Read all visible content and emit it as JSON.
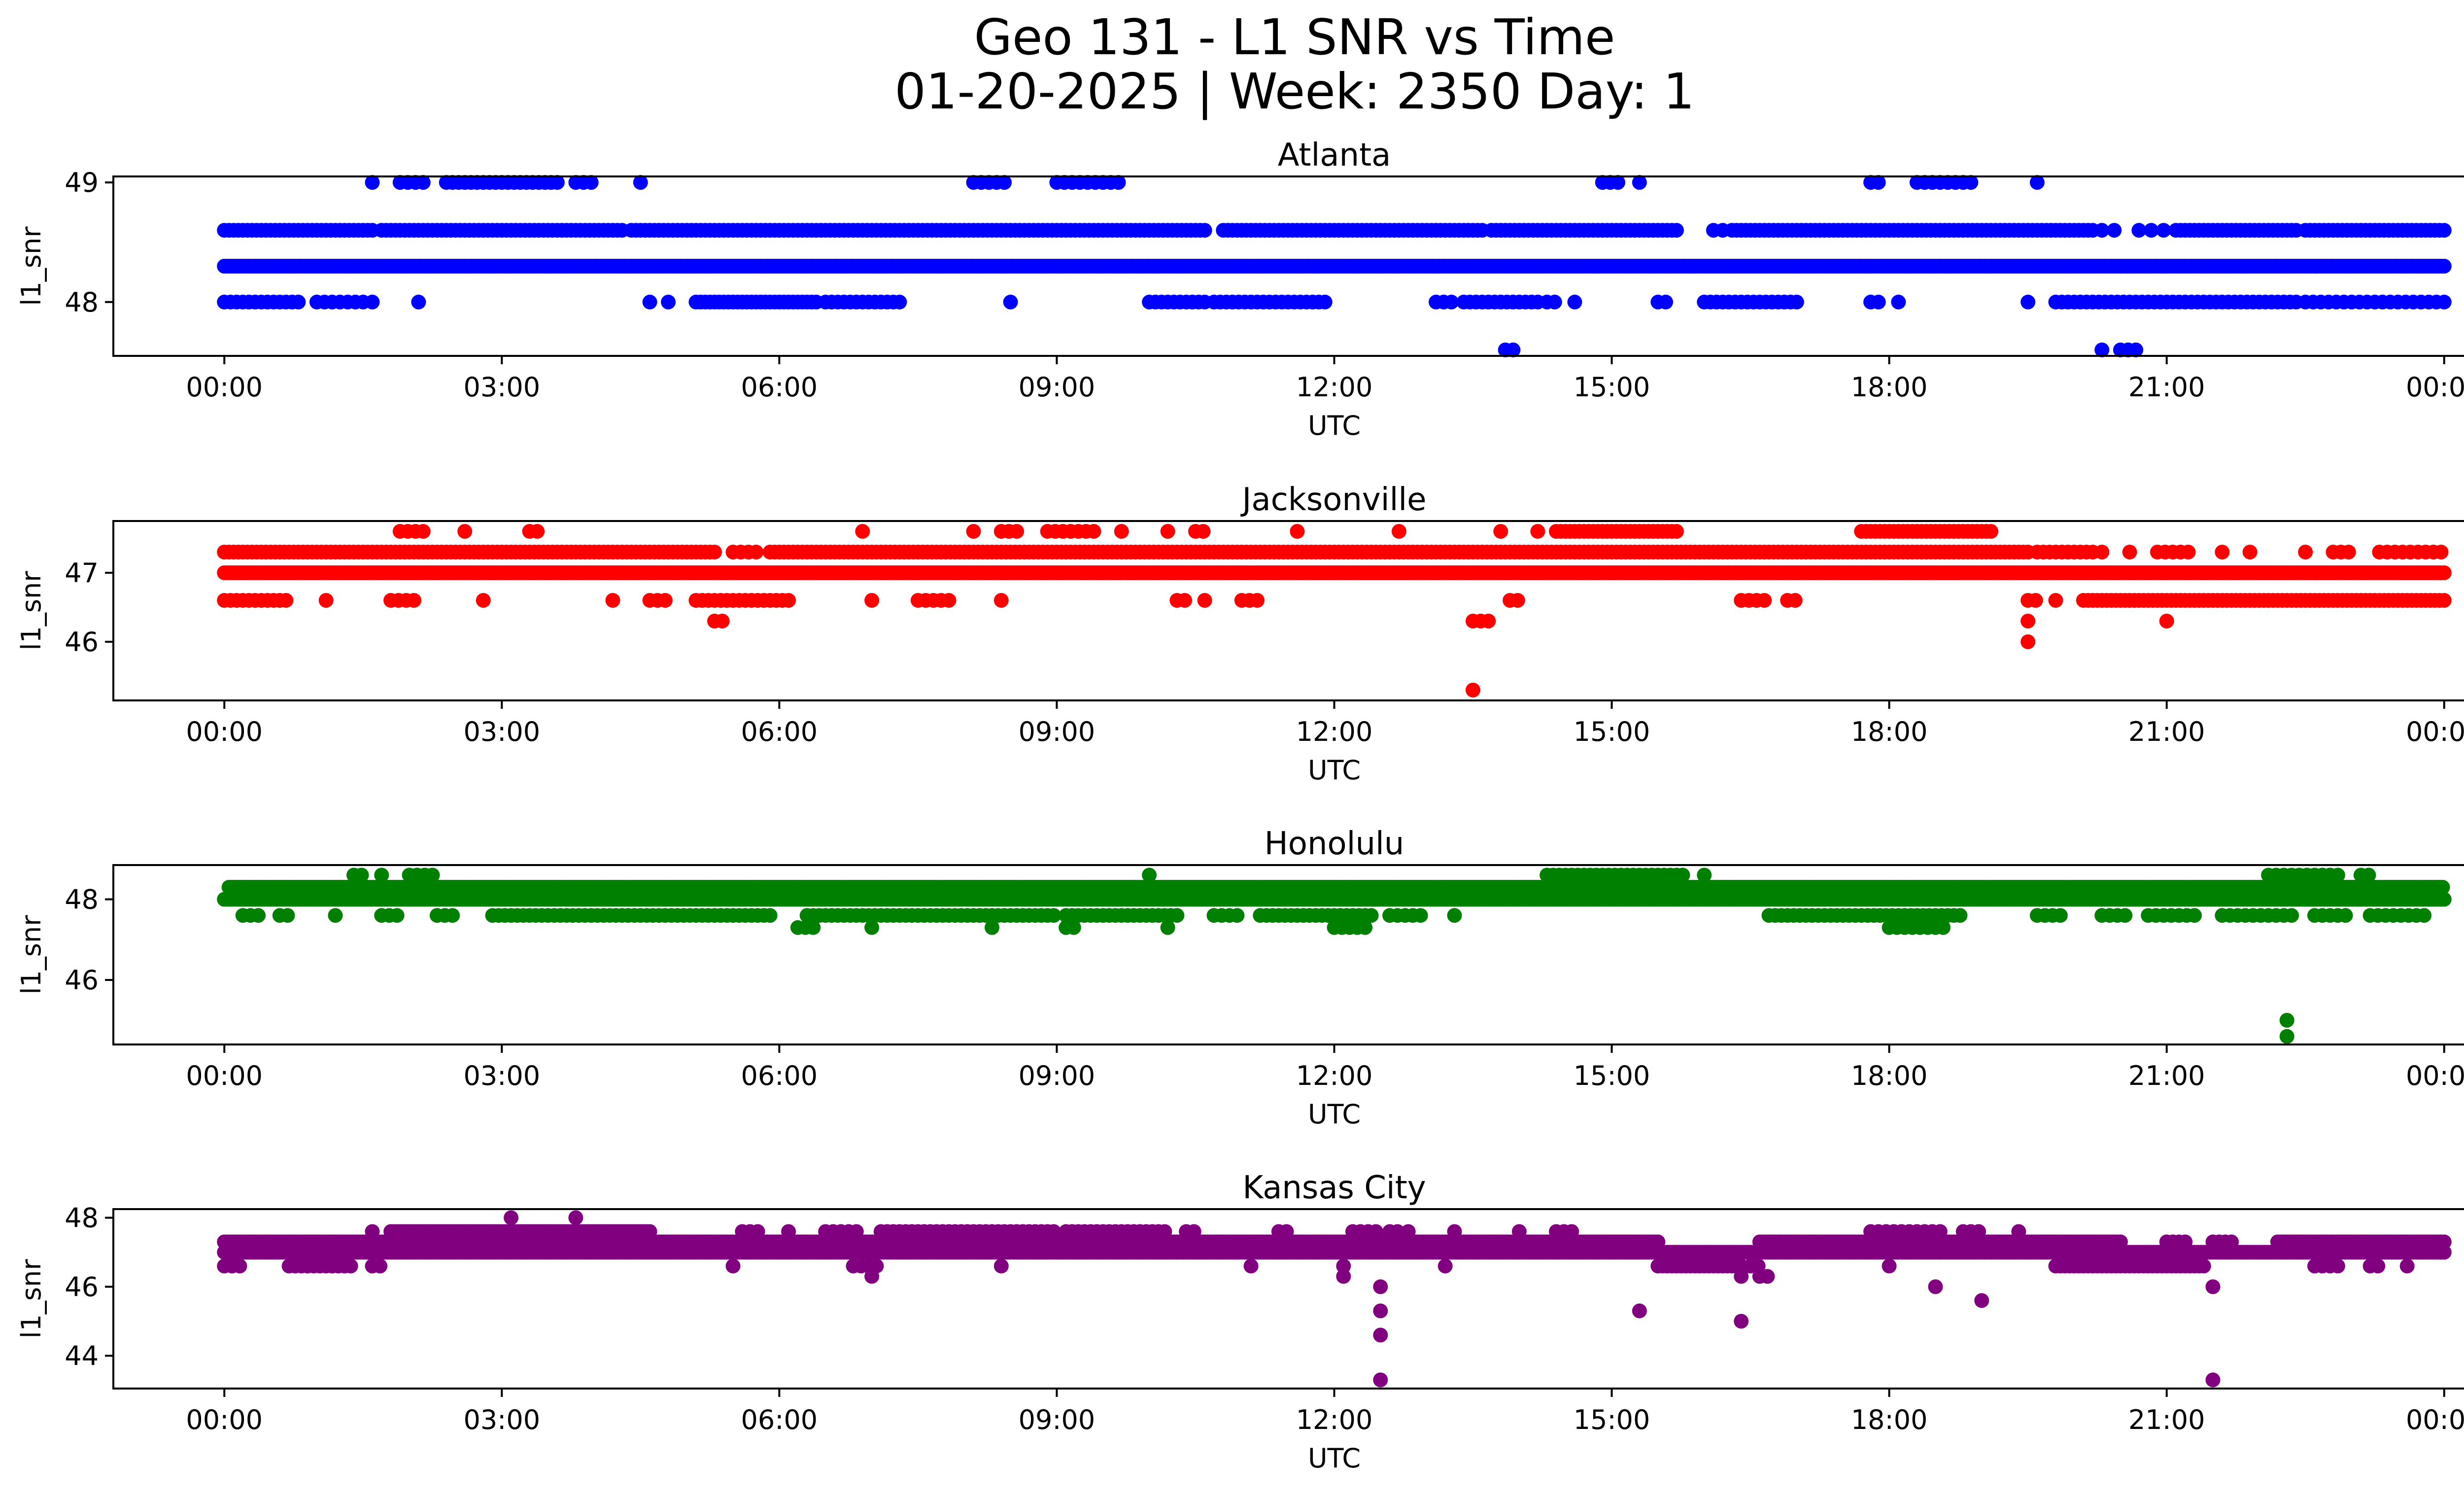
{
  "chart_data": {
    "type": "scatter",
    "title": "Geo 131 - L1 SNR vs Time",
    "subtitle": "01-20-2025 | Week: 2350 Day: 1",
    "x_tick_labels": [
      "00:00",
      "03:00",
      "06:00",
      "09:00",
      "12:00",
      "15:00",
      "18:00",
      "21:00",
      "00:00"
    ],
    "x_range_hours": [
      -1.2,
      25.2
    ],
    "panels": [
      {
        "name": "Atlanta",
        "color": "#0000ff",
        "xlabel": "UTC",
        "ylabel": "l1_snr",
        "ylim": [
          47.55,
          49.05
        ],
        "yticks": [
          48,
          49
        ],
        "runs": [
          [
            0.0,
            24.0,
            48.3,
            2
          ],
          [
            0.0,
            1.6,
            48.6,
            3
          ],
          [
            1.7,
            4.3,
            48.6,
            3
          ],
          [
            4.4,
            5.4,
            48.6,
            3
          ],
          [
            5.45,
            6.0,
            48.6,
            3
          ],
          [
            6.05,
            10.6,
            48.6,
            3
          ],
          [
            10.8,
            12.8,
            48.6,
            3
          ],
          [
            12.85,
            13.6,
            48.6,
            3
          ],
          [
            13.7,
            15.7,
            48.6,
            3
          ],
          [
            16.1,
            16.2,
            48.6,
            6
          ],
          [
            16.3,
            20.2,
            48.6,
            3
          ],
          [
            20.3,
            20.5,
            48.6,
            8
          ],
          [
            20.7,
            21.0,
            48.6,
            8
          ],
          [
            21.1,
            22.4,
            48.6,
            3
          ],
          [
            22.5,
            24.0,
            48.6,
            3
          ],
          [
            0.0,
            0.8,
            48.0,
            4
          ],
          [
            1.0,
            1.5,
            48.0,
            5
          ],
          [
            1.6,
            1.6,
            48.0,
            5
          ],
          [
            2.1,
            2.1,
            48.0,
            5
          ],
          [
            4.6,
            4.6,
            48.0,
            5
          ],
          [
            4.8,
            4.8,
            48.0,
            5
          ],
          [
            5.1,
            6.4,
            48.0,
            3
          ],
          [
            6.5,
            7.3,
            48.0,
            4
          ],
          [
            8.5,
            8.5,
            48.0,
            5
          ],
          [
            10.0,
            10.6,
            48.0,
            4
          ],
          [
            10.7,
            11.9,
            48.0,
            4
          ],
          [
            13.1,
            13.3,
            48.0,
            5
          ],
          [
            13.4,
            14.2,
            48.0,
            4
          ],
          [
            14.3,
            14.4,
            48.0,
            5
          ],
          [
            14.6,
            14.6,
            48.0,
            5
          ],
          [
            15.5,
            15.6,
            48.0,
            5
          ],
          [
            16.0,
            17.0,
            48.0,
            4
          ],
          [
            17.8,
            17.9,
            48.0,
            5
          ],
          [
            18.1,
            18.1,
            48.0,
            5
          ],
          [
            19.5,
            19.5,
            48.0,
            5
          ],
          [
            19.8,
            22.4,
            48.0,
            4
          ],
          [
            22.5,
            24.0,
            48.0,
            5
          ],
          [
            1.6,
            1.6,
            49.0,
            5
          ],
          [
            1.9,
            2.2,
            49.0,
            5
          ],
          [
            2.4,
            3.6,
            49.0,
            4
          ],
          [
            3.8,
            4.0,
            49.0,
            5
          ],
          [
            4.5,
            4.5,
            49.0,
            5
          ],
          [
            8.1,
            8.5,
            49.0,
            5
          ],
          [
            9.0,
            9.7,
            49.0,
            5
          ],
          [
            14.9,
            15.1,
            49.0,
            5
          ],
          [
            15.3,
            15.3,
            49.0,
            5
          ],
          [
            17.8,
            17.9,
            49.0,
            5
          ],
          [
            18.3,
            18.9,
            49.0,
            5
          ],
          [
            19.6,
            19.6,
            49.0,
            5
          ],
          [
            13.85,
            13.95,
            47.6,
            5
          ],
          [
            20.3,
            20.3,
            47.6,
            5
          ],
          [
            20.5,
            20.7,
            47.6,
            5
          ]
        ]
      },
      {
        "name": "Jacksonville",
        "color": "#ff0000",
        "xlabel": "UTC",
        "ylabel": "l1_snr",
        "ylim": [
          45.15,
          47.75
        ],
        "yticks": [
          46,
          47
        ],
        "runs": [
          [
            0.0,
            24.0,
            47.0,
            2
          ],
          [
            0.0,
            5.3,
            47.3,
            3
          ],
          [
            5.5,
            5.8,
            47.3,
            5
          ],
          [
            5.9,
            19.5,
            47.3,
            3
          ],
          [
            19.6,
            20.2,
            47.3,
            4
          ],
          [
            20.3,
            20.3,
            47.3,
            5
          ],
          [
            20.6,
            20.6,
            47.3,
            5
          ],
          [
            20.9,
            21.3,
            47.3,
            5
          ],
          [
            21.6,
            21.6,
            47.3,
            5
          ],
          [
            21.9,
            21.9,
            47.3,
            5
          ],
          [
            22.5,
            22.5,
            47.3,
            5
          ],
          [
            22.8,
            23.0,
            47.3,
            5
          ],
          [
            23.3,
            24.0,
            47.3,
            5
          ],
          [
            0.0,
            0.7,
            46.6,
            4
          ],
          [
            1.1,
            1.1,
            46.6,
            5
          ],
          [
            1.8,
            2.1,
            46.6,
            5
          ],
          [
            2.8,
            2.8,
            46.6,
            5
          ],
          [
            4.2,
            4.2,
            46.6,
            5
          ],
          [
            4.6,
            4.8,
            46.6,
            5
          ],
          [
            5.1,
            6.1,
            46.6,
            4
          ],
          [
            7.0,
            7.0,
            46.6,
            5
          ],
          [
            7.5,
            7.9,
            46.6,
            5
          ],
          [
            8.4,
            8.4,
            46.6,
            5
          ],
          [
            10.3,
            10.4,
            46.6,
            5
          ],
          [
            10.6,
            10.6,
            46.6,
            5
          ],
          [
            11.0,
            11.2,
            46.6,
            5
          ],
          [
            13.9,
            14.0,
            46.6,
            5
          ],
          [
            16.4,
            16.7,
            46.6,
            5
          ],
          [
            16.9,
            17.0,
            46.6,
            5
          ],
          [
            19.5,
            19.6,
            46.6,
            5
          ],
          [
            19.8,
            19.8,
            46.6,
            5
          ],
          [
            20.1,
            24.0,
            46.6,
            3
          ],
          [
            5.3,
            5.4,
            46.3,
            5
          ],
          [
            13.5,
            13.7,
            46.3,
            5
          ],
          [
            19.5,
            19.5,
            46.3,
            5
          ],
          [
            21.0,
            21.0,
            46.3,
            5
          ],
          [
            19.5,
            19.5,
            46.0,
            5
          ],
          [
            13.5,
            13.5,
            45.3,
            5
          ],
          [
            1.9,
            2.2,
            47.6,
            5
          ],
          [
            2.6,
            2.6,
            47.6,
            5
          ],
          [
            3.3,
            3.4,
            47.6,
            5
          ],
          [
            6.9,
            6.9,
            47.6,
            5
          ],
          [
            8.1,
            8.1,
            47.6,
            5
          ],
          [
            8.4,
            8.6,
            47.6,
            5
          ],
          [
            8.9,
            9.4,
            47.6,
            5
          ],
          [
            9.7,
            9.7,
            47.6,
            5
          ],
          [
            10.2,
            10.2,
            47.6,
            5
          ],
          [
            10.5,
            10.6,
            47.6,
            5
          ],
          [
            11.6,
            11.6,
            47.6,
            5
          ],
          [
            12.7,
            12.75,
            47.6,
            5
          ],
          [
            13.8,
            13.8,
            47.6,
            5
          ],
          [
            14.2,
            14.2,
            47.6,
            5
          ],
          [
            14.4,
            15.7,
            47.6,
            3
          ],
          [
            17.7,
            19.1,
            47.6,
            3
          ]
        ]
      },
      {
        "name": "Honolulu",
        "color": "#008000",
        "xlabel": "UTC",
        "ylabel": "l1_snr",
        "ylim": [
          44.4,
          48.85
        ],
        "yticks": [
          46,
          48
        ],
        "runs": [
          [
            0.0,
            24.0,
            48.0,
            2
          ],
          [
            0.05,
            24.0,
            48.3,
            2
          ],
          [
            0.2,
            0.4,
            47.6,
            5
          ],
          [
            0.6,
            0.7,
            47.6,
            5
          ],
          [
            1.2,
            1.2,
            47.6,
            5
          ],
          [
            1.7,
            1.9,
            47.6,
            5
          ],
          [
            2.3,
            2.5,
            47.6,
            5
          ],
          [
            2.9,
            5.9,
            47.6,
            4
          ],
          [
            6.3,
            9.0,
            47.6,
            4
          ],
          [
            9.1,
            10.3,
            47.6,
            4
          ],
          [
            10.7,
            11.0,
            47.6,
            5
          ],
          [
            11.2,
            12.4,
            47.6,
            4
          ],
          [
            12.6,
            13.0,
            47.6,
            5
          ],
          [
            13.3,
            13.3,
            47.6,
            5
          ],
          [
            16.7,
            18.8,
            47.6,
            4
          ],
          [
            19.6,
            19.9,
            47.6,
            5
          ],
          [
            20.3,
            20.6,
            47.6,
            5
          ],
          [
            20.8,
            21.3,
            47.6,
            5
          ],
          [
            21.6,
            22.4,
            47.6,
            5
          ],
          [
            22.6,
            23.0,
            47.6,
            5
          ],
          [
            23.2,
            23.8,
            47.6,
            5
          ],
          [
            6.2,
            6.4,
            47.3,
            5
          ],
          [
            7.0,
            7.0,
            47.3,
            5
          ],
          [
            8.3,
            8.3,
            47.3,
            5
          ],
          [
            9.1,
            9.2,
            47.3,
            5
          ],
          [
            10.2,
            10.2,
            47.3,
            5
          ],
          [
            12.0,
            12.4,
            47.3,
            5
          ],
          [
            18.0,
            18.6,
            47.3,
            5
          ],
          [
            1.4,
            1.5,
            48.6,
            5
          ],
          [
            1.7,
            1.7,
            48.6,
            5
          ],
          [
            2.0,
            2.3,
            48.6,
            5
          ],
          [
            10.0,
            10.0,
            48.6,
            5
          ],
          [
            14.3,
            15.8,
            48.6,
            4
          ],
          [
            16.0,
            16.0,
            48.6,
            5
          ],
          [
            22.1,
            22.9,
            48.6,
            5
          ],
          [
            23.1,
            23.2,
            48.6,
            5
          ],
          [
            22.3,
            22.3,
            45.0,
            5
          ],
          [
            22.3,
            22.3,
            44.6,
            5
          ]
        ]
      },
      {
        "name": "Kansas City",
        "color": "#800080",
        "xlabel": "UTC",
        "ylabel": "l1_snr",
        "ylim": [
          43.05,
          48.25
        ],
        "yticks": [
          44,
          46,
          48
        ],
        "runs": [
          [
            0.0,
            24.0,
            47.0,
            2
          ],
          [
            0.0,
            15.5,
            47.3,
            2
          ],
          [
            16.6,
            20.5,
            47.3,
            2
          ],
          [
            22.2,
            24.0,
            47.3,
            2
          ],
          [
            21.0,
            21.2,
            47.3,
            4
          ],
          [
            21.5,
            21.7,
            47.3,
            4
          ],
          [
            1.8,
            4.6,
            47.6,
            2
          ],
          [
            0.0,
            0.2,
            46.6,
            5
          ],
          [
            0.7,
            1.4,
            46.6,
            4
          ],
          [
            1.6,
            1.7,
            46.6,
            5
          ],
          [
            5.5,
            5.5,
            46.6,
            5
          ],
          [
            6.8,
            7.1,
            46.6,
            5
          ],
          [
            8.4,
            8.4,
            46.6,
            5
          ],
          [
            11.1,
            11.1,
            46.6,
            5
          ],
          [
            12.1,
            12.1,
            46.6,
            5
          ],
          [
            13.2,
            13.2,
            46.6,
            5
          ],
          [
            15.5,
            16.4,
            46.6,
            3
          ],
          [
            16.5,
            16.6,
            46.6,
            5
          ],
          [
            18.0,
            18.0,
            46.6,
            5
          ],
          [
            19.8,
            21.4,
            46.6,
            3
          ],
          [
            22.6,
            22.9,
            46.6,
            5
          ],
          [
            23.2,
            23.3,
            46.6,
            5
          ],
          [
            23.6,
            23.6,
            46.6,
            5
          ],
          [
            7.0,
            7.0,
            46.3,
            5
          ],
          [
            12.1,
            12.1,
            46.3,
            5
          ],
          [
            16.4,
            16.4,
            46.3,
            5
          ],
          [
            16.6,
            16.7,
            46.3,
            5
          ],
          [
            12.5,
            12.5,
            46.0,
            5
          ],
          [
            18.5,
            18.5,
            46.0,
            5
          ],
          [
            21.5,
            21.5,
            46.0,
            5
          ],
          [
            19.0,
            19.0,
            45.6,
            5
          ],
          [
            12.5,
            12.5,
            45.3,
            5
          ],
          [
            15.3,
            15.3,
            45.3,
            5
          ],
          [
            12.5,
            12.5,
            44.6,
            5
          ],
          [
            16.4,
            16.4,
            45.0,
            5
          ],
          [
            12.5,
            12.5,
            43.3,
            5
          ],
          [
            21.5,
            21.5,
            43.3,
            5
          ],
          [
            1.6,
            1.6,
            47.6,
            5
          ],
          [
            5.6,
            5.8,
            47.6,
            5
          ],
          [
            6.1,
            6.1,
            47.6,
            5
          ],
          [
            6.5,
            6.9,
            47.6,
            5
          ],
          [
            7.1,
            9.0,
            47.6,
            4
          ],
          [
            9.1,
            10.2,
            47.6,
            4
          ],
          [
            10.4,
            10.5,
            47.6,
            5
          ],
          [
            11.4,
            11.5,
            47.6,
            5
          ],
          [
            12.2,
            12.5,
            47.6,
            5
          ],
          [
            12.6,
            12.7,
            47.6,
            5
          ],
          [
            12.8,
            12.8,
            47.6,
            5
          ],
          [
            13.3,
            13.3,
            47.6,
            5
          ],
          [
            14.0,
            14.0,
            47.6,
            5
          ],
          [
            14.4,
            14.6,
            47.6,
            5
          ],
          [
            17.8,
            18.6,
            47.6,
            5
          ],
          [
            18.8,
            19.0,
            47.6,
            5
          ],
          [
            19.4,
            19.4,
            47.6,
            5
          ],
          [
            3.1,
            3.1,
            48.0,
            5
          ],
          [
            3.8,
            3.8,
            48.0,
            5
          ]
        ]
      }
    ]
  }
}
